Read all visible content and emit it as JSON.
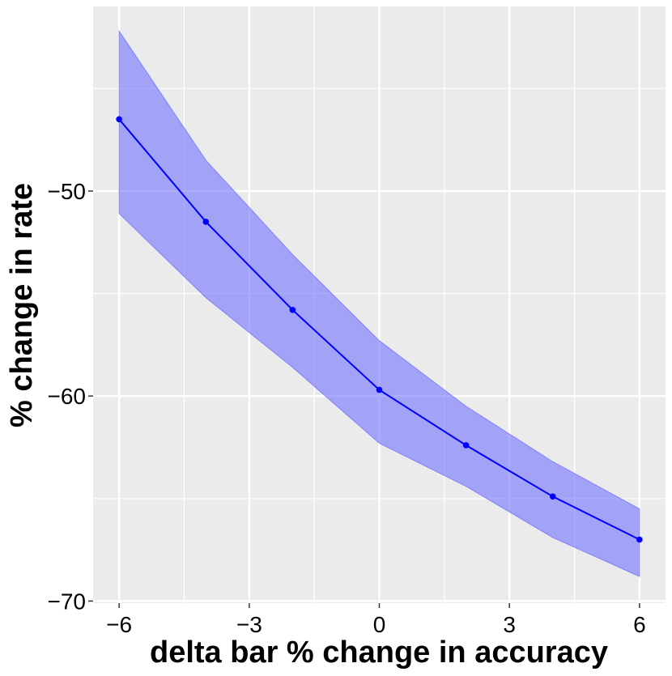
{
  "chart_data": {
    "type": "line",
    "title": "",
    "xlabel": "delta bar % change in accuracy",
    "ylabel": "% change in rate",
    "xlim": [
      -6.6,
      6.6
    ],
    "ylim": [
      -70.1,
      -41.0
    ],
    "x_ticks": [
      -6,
      -3,
      0,
      3,
      6
    ],
    "x_tick_labels": [
      "−6",
      "−3",
      "0",
      "3",
      "6"
    ],
    "y_ticks": [
      -70,
      -60,
      -50
    ],
    "y_tick_labels": [
      "−70",
      "−60",
      "−50"
    ],
    "grid": true,
    "legend": "none",
    "series": [
      {
        "x": [
          -6,
          -4,
          -2,
          0,
          2,
          4,
          6
        ],
        "y": [
          -46.5,
          -51.5,
          -55.8,
          -59.7,
          -62.4,
          -64.9,
          -67.0
        ],
        "lower": [
          -51.1,
          -55.2,
          -58.6,
          -62.3,
          -64.4,
          -66.9,
          -68.8
        ],
        "upper": [
          -42.2,
          -48.5,
          -53.1,
          -57.3,
          -60.5,
          -63.2,
          -65.5
        ],
        "color": "#0000ff",
        "band_color": "#6666ff"
      }
    ]
  }
}
